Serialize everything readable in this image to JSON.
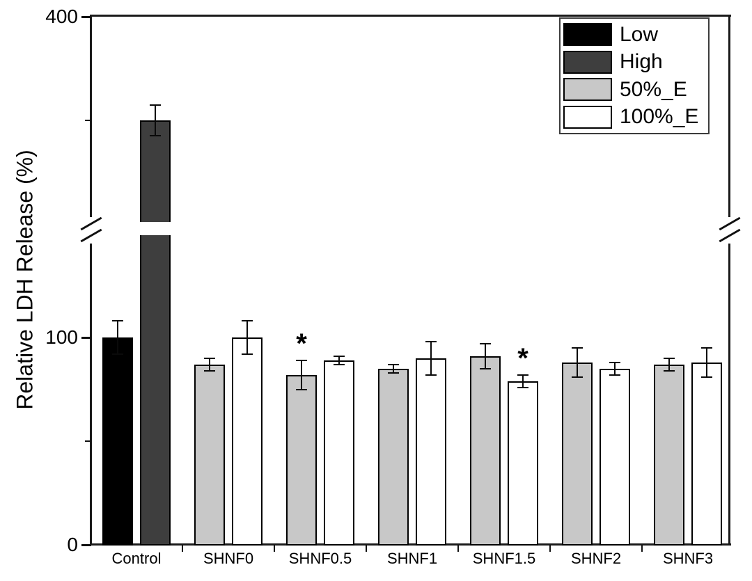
{
  "figure": {
    "background": "#ffffff"
  },
  "chart_data": {
    "type": "bar",
    "title": "",
    "xlabel": "",
    "ylabel": "Relative LDH Release (%)",
    "ylim": [
      0,
      400
    ],
    "grid": false,
    "legend_position": "top-right",
    "axis_break": {
      "from": 150,
      "to": 200,
      "on_sides": [
        "left",
        "right"
      ]
    },
    "y_axis": {
      "major_ticks": [
        {
          "value": 400,
          "label": "400"
        },
        {
          "value": 100,
          "label": "100"
        },
        {
          "value": 0,
          "label": "0"
        }
      ],
      "minor_ticks": [
        300,
        50
      ]
    },
    "legend": [
      {
        "name": "Low",
        "fill": "#000000",
        "border": "#000000"
      },
      {
        "name": "High",
        "fill": "#3e3e3e",
        "border": "#000000"
      },
      {
        "name": "50%_E",
        "fill": "#c8c8c8",
        "border": "#000000"
      },
      {
        "name": "100%_E",
        "fill": "#ffffff",
        "border": "#000000"
      }
    ],
    "groups": [
      {
        "label": "Control",
        "bars": [
          {
            "series": "Low",
            "value": 100,
            "error": 8
          },
          {
            "series": "High",
            "value": 300,
            "error": 15
          }
        ]
      },
      {
        "label": "SHNF0",
        "bars": [
          {
            "series": "50%_E",
            "value": 87,
            "error": 3
          },
          {
            "series": "100%_E",
            "value": 100,
            "error": 8
          }
        ]
      },
      {
        "label": "SHNF0.5",
        "bars": [
          {
            "series": "50%_E",
            "value": 82,
            "error": 7,
            "sig": "*"
          },
          {
            "series": "100%_E",
            "value": 89,
            "error": 2
          }
        ]
      },
      {
        "label": "SHNF1",
        "bars": [
          {
            "series": "50%_E",
            "value": 85,
            "error": 2
          },
          {
            "series": "100%_E",
            "value": 90,
            "error": 8
          }
        ]
      },
      {
        "label": "SHNF1.5",
        "bars": [
          {
            "series": "50%_E",
            "value": 91,
            "error": 6
          },
          {
            "series": "100%_E",
            "value": 79,
            "error": 3,
            "sig": "*"
          }
        ]
      },
      {
        "label": "SHNF2",
        "bars": [
          {
            "series": "50%_E",
            "value": 88,
            "error": 7
          },
          {
            "series": "100%_E",
            "value": 85,
            "error": 3
          }
        ]
      },
      {
        "label": "SHNF3",
        "bars": [
          {
            "series": "50%_E",
            "value": 87,
            "error": 3
          },
          {
            "series": "100%_E",
            "value": 88,
            "error": 7
          }
        ]
      }
    ]
  }
}
